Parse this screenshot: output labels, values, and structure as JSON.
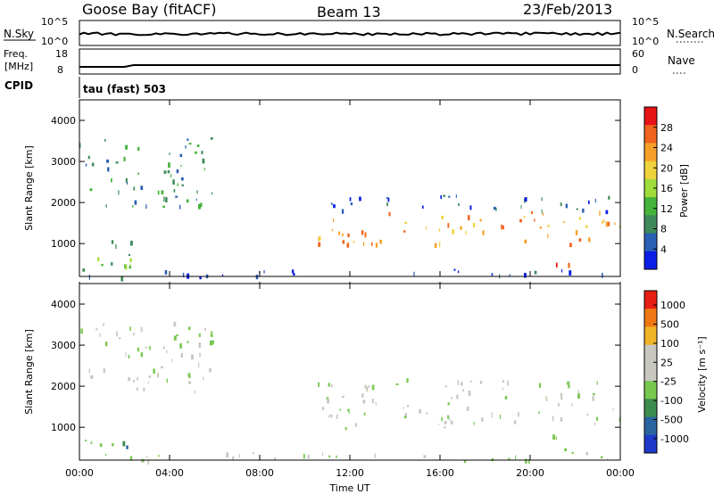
{
  "header": {
    "station": "Goose Bay (fitACF)",
    "beam": "Beam 13",
    "date": "23/Feb/2013"
  },
  "status_panels": {
    "nsky_label": "N.Sky",
    "nsky_ticks": [
      "10^5",
      "10^0"
    ],
    "nsearch_label": "N.Search",
    "nsearch_ticks": [
      "10^5",
      "10^0"
    ],
    "freq_label_1": "Freq.",
    "freq_label_2": "[MHz]",
    "freq_ticks": [
      "18",
      "8"
    ],
    "nave_label": "Nave",
    "nave_ticks": [
      "60",
      "0"
    ],
    "cpid_label": "CPID",
    "cpid_text": "tau (fast) 503"
  },
  "chart_data": [
    {
      "type": "heatmap",
      "name": "power",
      "ylabel": "Slant Range [km]",
      "y_ticks": [
        "1000",
        "2000",
        "3000",
        "4000"
      ],
      "ylim": [
        200,
        4500
      ],
      "xlim_hours": [
        0,
        24
      ],
      "colorbar_label": "Power [dB]",
      "colorbar_ticks": [
        "4",
        "8",
        "12",
        "16",
        "20",
        "24",
        "28"
      ],
      "colors": [
        "#0a1ee6",
        "#2a5fb4",
        "#3e8a5a",
        "#46b43c",
        "#a0dc3c",
        "#f0d23c",
        "#f5a028",
        "#f0641e",
        "#e61414"
      ],
      "regions": [
        {
          "t": [
            0.0,
            5.9
          ],
          "r": [
            1900,
            3600
          ],
          "level": 2
        },
        {
          "t": [
            10.5,
            24.0
          ],
          "r": [
            1000,
            1800
          ],
          "level": 6
        },
        {
          "t": [
            10.5,
            24.0
          ],
          "r": [
            1800,
            2200
          ],
          "level": 1
        },
        {
          "t": [
            20.6,
            21.7
          ],
          "r": [
            450,
            850
          ],
          "level": 8
        },
        {
          "t": [
            0.0,
            2.5
          ],
          "r": [
            350,
            1100
          ],
          "level": 3
        },
        {
          "t": [
            0.0,
            24.0
          ],
          "r": [
            200,
            400
          ],
          "level": 1
        }
      ]
    },
    {
      "type": "heatmap",
      "name": "velocity",
      "ylabel": "Slant Range [km]",
      "y_ticks": [
        "1000",
        "2000",
        "3000",
        "4000"
      ],
      "ylim": [
        200,
        4500
      ],
      "xlim_hours": [
        0,
        24
      ],
      "colorbar_label": "Velocity [m s⁻¹]",
      "colorbar_ticks": [
        "1000",
        "500",
        "100",
        "25",
        "-25",
        "-100",
        "-500",
        "-1000"
      ],
      "colors": [
        "#1f3ac8",
        "#2a64a0",
        "#3c8c50",
        "#78c850",
        "#c8c8c0",
        "#c8c8c0",
        "#f0b428",
        "#f07814",
        "#e61e14"
      ],
      "regions": [
        {
          "t": [
            0.0,
            5.9
          ],
          "r": [
            1900,
            3600
          ],
          "level": 4
        },
        {
          "t": [
            10.5,
            24.0
          ],
          "r": [
            1000,
            2200
          ],
          "level": 4
        },
        {
          "t": [
            20.6,
            21.7
          ],
          "r": [
            450,
            850
          ],
          "level": 2
        },
        {
          "t": [
            0.0,
            2.5
          ],
          "r": [
            350,
            1100
          ],
          "level": 2
        },
        {
          "t": [
            0.0,
            24.0
          ],
          "r": [
            200,
            400
          ],
          "level": 4
        }
      ]
    }
  ],
  "x_axis": {
    "ticks": [
      "00:00",
      "04:00",
      "08:00",
      "12:00",
      "16:00",
      "20:00",
      "00:00"
    ],
    "label": "Time UT"
  }
}
